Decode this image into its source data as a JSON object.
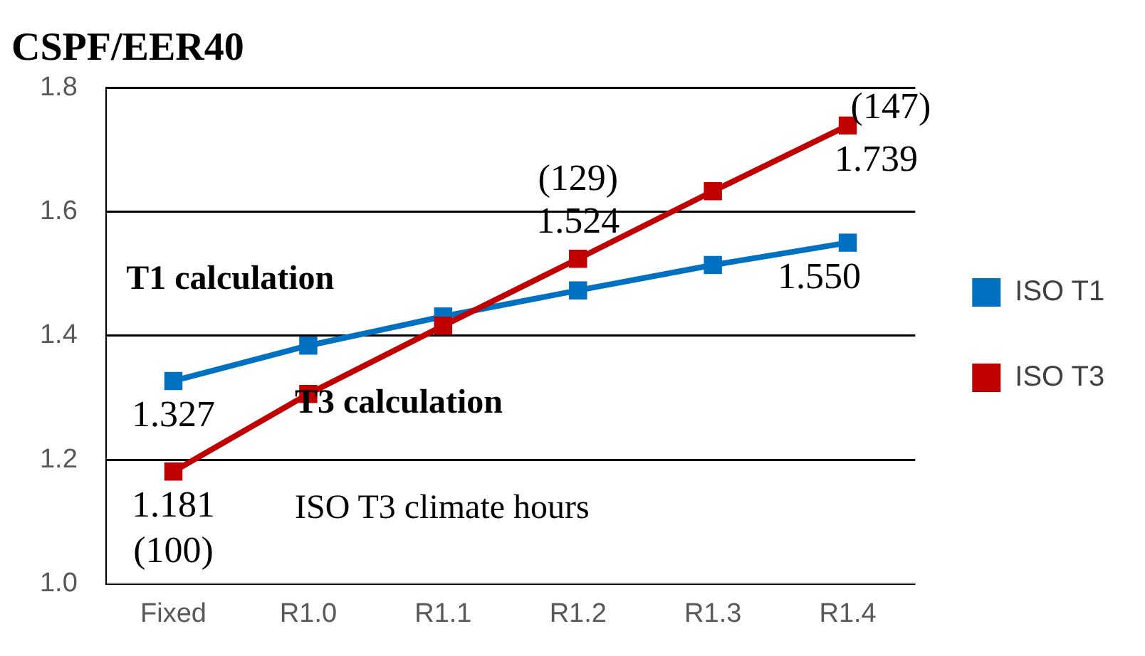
{
  "chart_data": {
    "type": "line",
    "title": "CSPF/EER40",
    "categories": [
      "Fixed",
      "R1.0",
      "R1.1",
      "R1.2",
      "R1.3",
      "R1.4"
    ],
    "series": [
      {
        "name": "ISO T1",
        "color": "#0070c0",
        "values": [
          1.327,
          1.384,
          1.431,
          1.473,
          1.514,
          1.55
        ],
        "value_labels": [
          "1.327",
          null,
          null,
          null,
          null,
          "1.550"
        ]
      },
      {
        "name": "ISO T3",
        "color": "#c00000",
        "values": [
          1.181,
          1.306,
          1.416,
          1.524,
          1.633,
          1.739
        ],
        "value_labels": [
          "1.181",
          null,
          null,
          "1.524",
          null,
          "1.739"
        ]
      }
    ],
    "ylim": [
      1.0,
      1.8
    ],
    "yticks": [
      {
        "value": 1.0,
        "label": "1.0"
      },
      {
        "value": 1.2,
        "label": "1.2"
      },
      {
        "value": 1.4,
        "label": "1.4"
      },
      {
        "value": 1.6,
        "label": "1.6"
      },
      {
        "value": 1.8,
        "label": "1.8"
      }
    ],
    "grid": "y",
    "legend": "right",
    "marker": "square",
    "line_style": "solid",
    "annotations": [
      "T1 calculation",
      "T3 calculation",
      "ISO T3 climate hours",
      {
        "text": "(100)",
        "x": "Fixed",
        "y": 1.181
      },
      {
        "text": "(129)",
        "x": "R1.2",
        "y": 1.524
      },
      {
        "text": "(147)",
        "x": "R1.4",
        "y": 1.739
      }
    ]
  }
}
